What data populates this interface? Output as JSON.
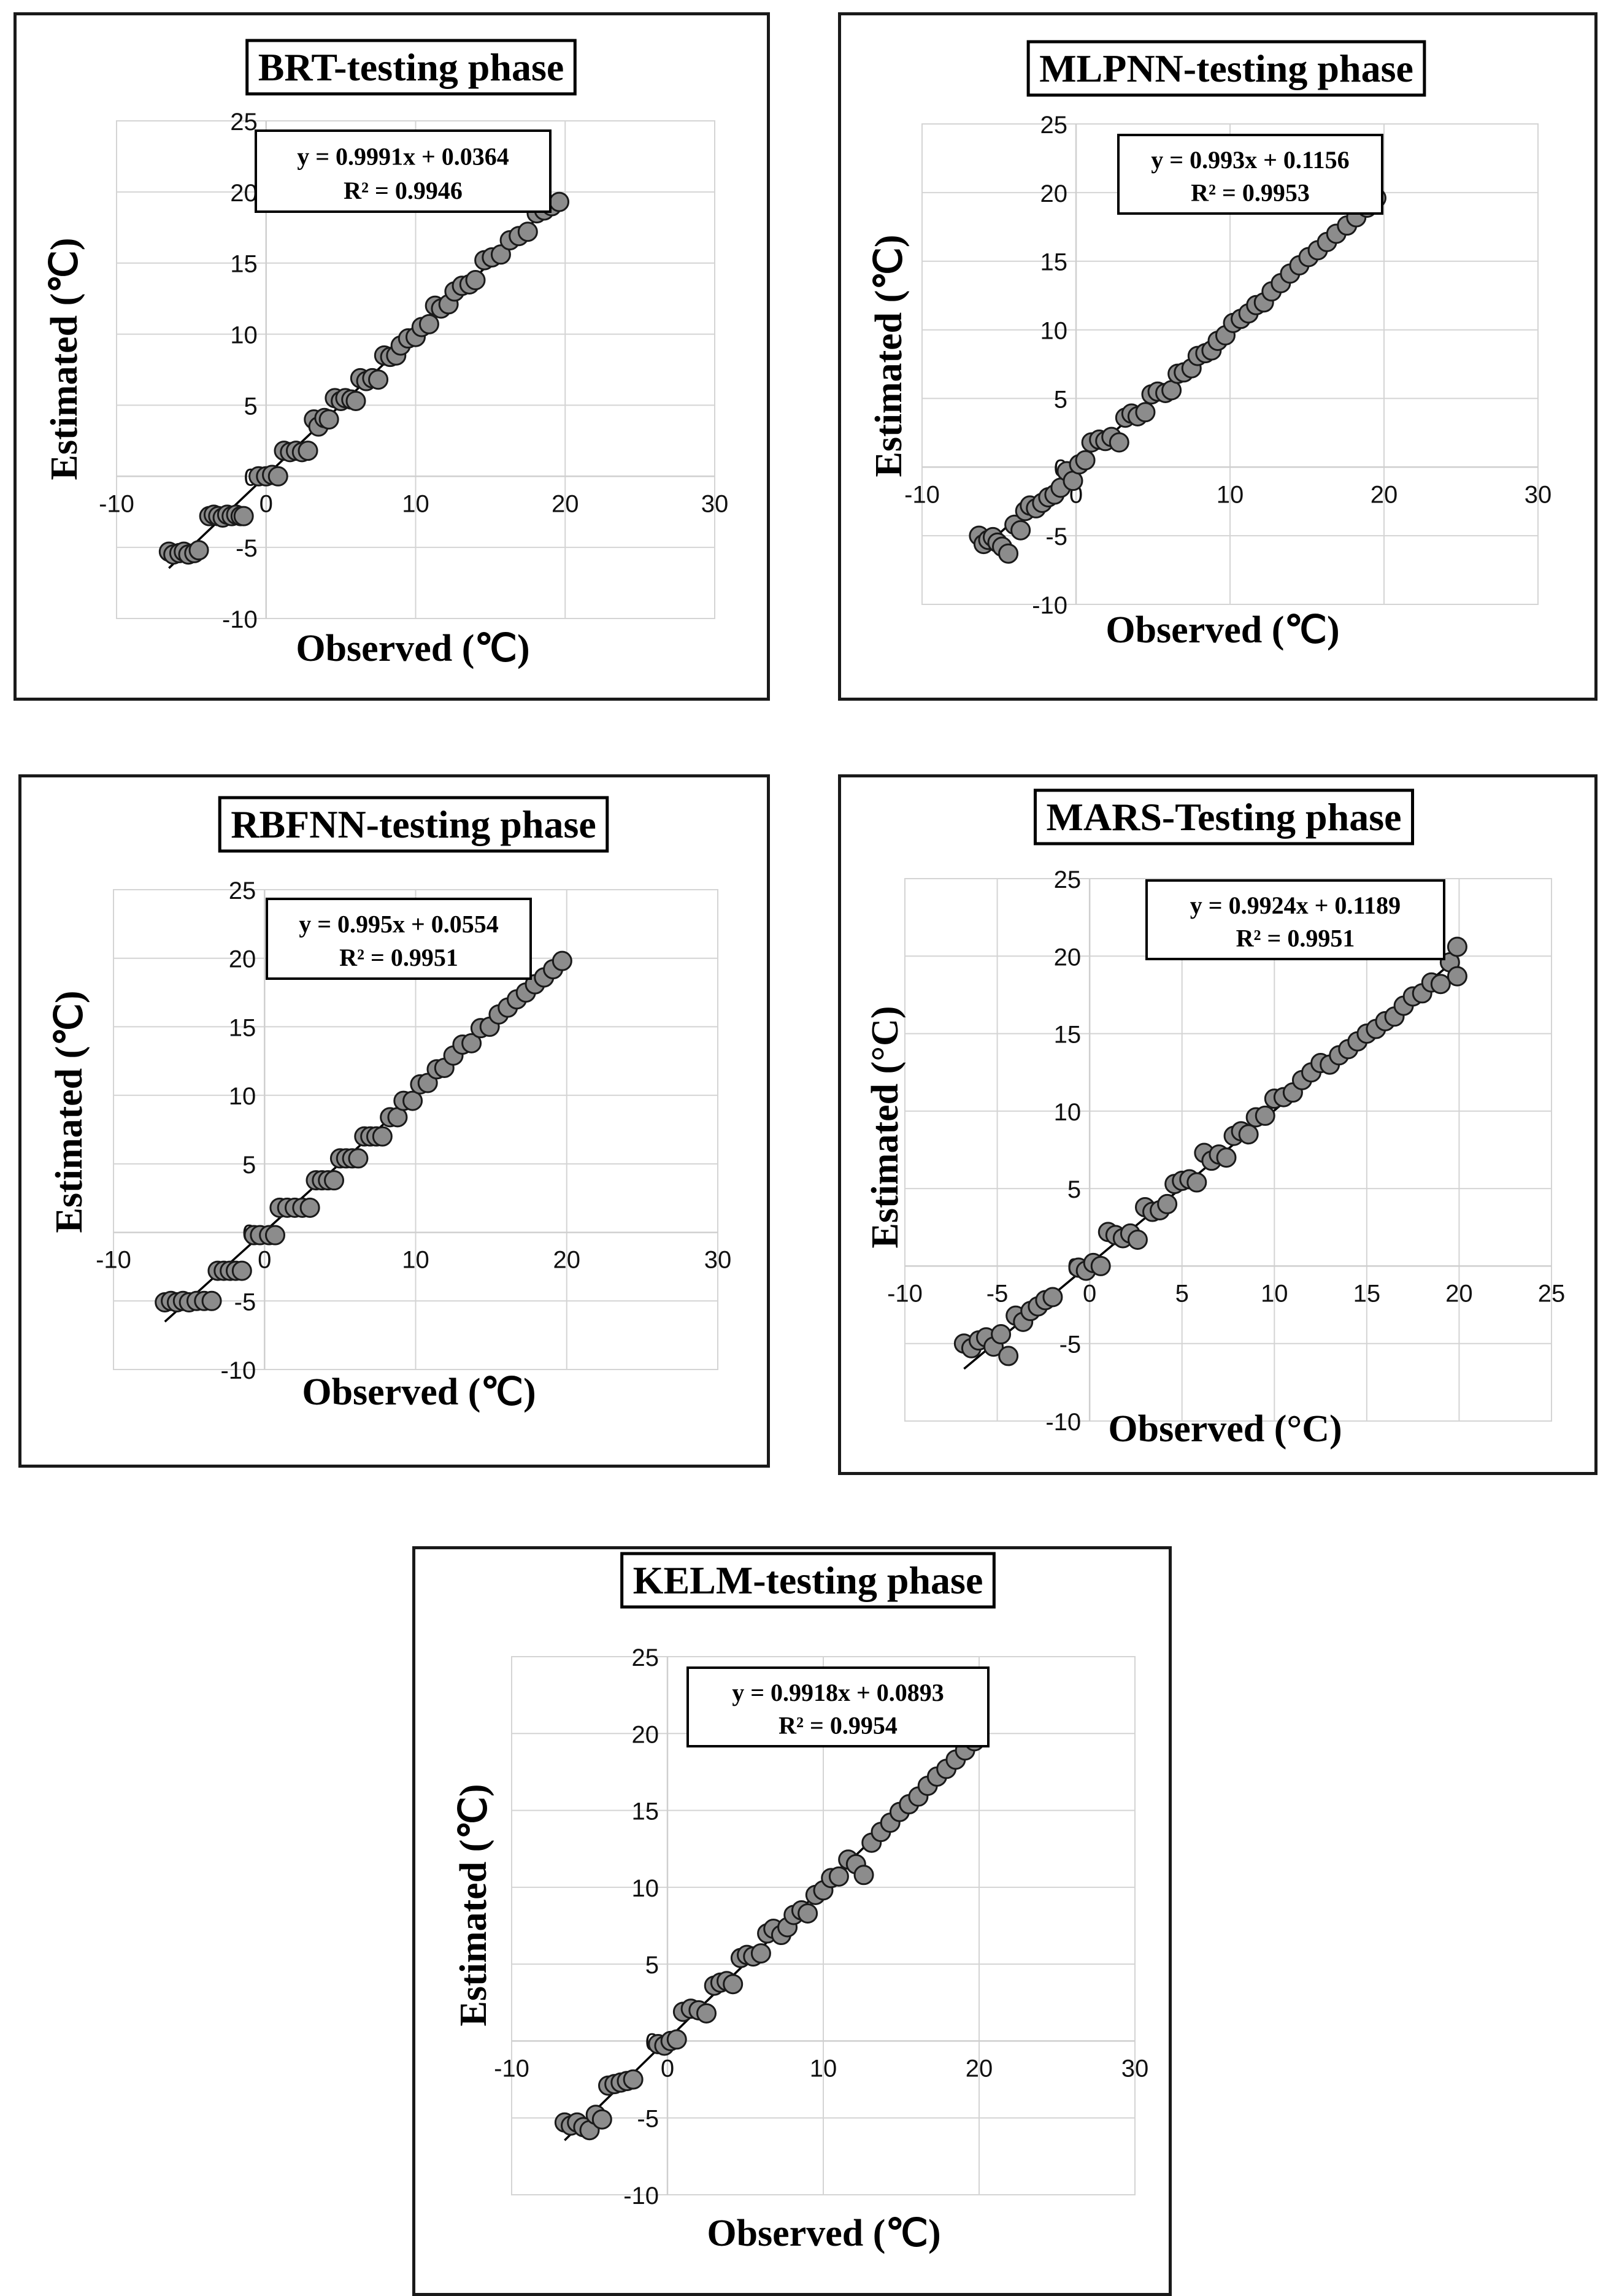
{
  "figure": {
    "x_axis_label": "Observed (℃)",
    "y_axis_label": "Estimated (℃)"
  },
  "chart_data": [
    {
      "type": "scatter",
      "title": "BRT-testing phase",
      "xlabel": "Observed (℃)",
      "ylabel": "Estimated (℃)",
      "xlim": [
        -10,
        30
      ],
      "ylim": [
        -10,
        25
      ],
      "xticks": [
        "-10",
        "0",
        "10",
        "20",
        "30"
      ],
      "yticks": [
        "-10",
        "-5",
        "0",
        "5",
        "10",
        "15",
        "20",
        "25"
      ],
      "equation": "y = 0.9991x + 0.0364",
      "r2_text": "R² = 0.9946",
      "slope": 0.9991,
      "intercept": 0.0364,
      "x": [
        -6.5,
        -6.2,
        -5.8,
        -5.5,
        -5.2,
        -4.8,
        -4.5,
        -3.8,
        -3.5,
        -3.2,
        -2.9,
        -2.6,
        -2.3,
        -2.0,
        -1.7,
        -1.5,
        -0.5,
        0.0,
        0.4,
        0.8,
        1.2,
        1.6,
        2.0,
        2.4,
        2.8,
        3.2,
        3.5,
        3.9,
        4.2,
        4.6,
        5.0,
        5.3,
        5.7,
        6.0,
        6.3,
        6.7,
        7.1,
        7.5,
        7.9,
        8.3,
        8.7,
        9.0,
        9.5,
        10.0,
        10.4,
        10.9,
        11.3,
        11.7,
        12.2,
        12.6,
        13.1,
        13.6,
        14.0,
        14.6,
        15.1,
        15.7,
        16.3,
        16.9,
        17.5,
        18.1,
        18.6,
        19.1,
        19.6
      ],
      "y": [
        -5.3,
        -5.5,
        -5.4,
        -5.3,
        -5.5,
        -5.4,
        -5.2,
        -2.8,
        -2.7,
        -2.8,
        -2.9,
        -2.7,
        -2.8,
        -2.7,
        -2.8,
        -2.8,
        0.0,
        0.0,
        0.1,
        0.0,
        1.8,
        1.7,
        1.8,
        1.7,
        1.8,
        4.0,
        3.5,
        4.1,
        4.0,
        5.5,
        5.3,
        5.5,
        5.4,
        5.3,
        6.9,
        6.7,
        6.9,
        6.8,
        8.5,
        8.4,
        8.5,
        9.2,
        9.7,
        9.8,
        10.5,
        10.7,
        12.0,
        11.8,
        12.1,
        13.0,
        13.4,
        13.5,
        13.8,
        15.2,
        15.4,
        15.6,
        16.6,
        16.9,
        17.2,
        18.5,
        18.7,
        19.0,
        19.3
      ]
    },
    {
      "type": "scatter",
      "title": "MLPNN-testing phase",
      "xlabel": "Observed (℃)",
      "ylabel": "Estimated (℃)",
      "xlim": [
        -10,
        30
      ],
      "ylim": [
        -10,
        25
      ],
      "xticks": [
        "-10",
        "0",
        "10",
        "20",
        "30"
      ],
      "yticks": [
        "-10",
        "-5",
        "0",
        "5",
        "10",
        "15",
        "20",
        "25"
      ],
      "equation": "y = 0.993x + 0.1156",
      "r2_text": "R² = 0.9953",
      "slope": 0.993,
      "intercept": 0.1156,
      "x": [
        -6.3,
        -6.0,
        -5.7,
        -5.4,
        -5.1,
        -4.8,
        -4.4,
        -4.0,
        -3.6,
        -3.3,
        -3.0,
        -2.6,
        -2.2,
        -1.8,
        -1.4,
        -1.0,
        -0.6,
        -0.2,
        0.2,
        0.6,
        1.0,
        1.5,
        1.9,
        2.3,
        2.8,
        3.2,
        3.6,
        4.0,
        4.5,
        4.9,
        5.3,
        5.8,
        6.2,
        6.6,
        7.0,
        7.5,
        7.9,
        8.4,
        8.8,
        9.2,
        9.7,
        10.2,
        10.7,
        11.2,
        11.7,
        12.2,
        12.7,
        13.3,
        13.9,
        14.5,
        15.1,
        15.7,
        16.3,
        16.9,
        17.6,
        18.2,
        18.9,
        19.5
      ],
      "y": [
        -5.0,
        -5.6,
        -5.3,
        -5.1,
        -5.5,
        -5.8,
        -6.3,
        -4.2,
        -4.6,
        -3.2,
        -2.8,
        -3.0,
        -2.6,
        -2.2,
        -2.0,
        -1.5,
        -0.3,
        -1.0,
        0.2,
        0.5,
        1.8,
        2.0,
        1.9,
        2.2,
        1.8,
        3.6,
        3.9,
        3.7,
        4.0,
        5.3,
        5.5,
        5.4,
        5.6,
        6.8,
        6.9,
        7.2,
        8.1,
        8.3,
        8.5,
        9.2,
        9.6,
        10.5,
        10.8,
        11.2,
        11.8,
        12.0,
        12.8,
        13.4,
        14.1,
        14.7,
        15.3,
        15.8,
        16.4,
        17.0,
        17.6,
        18.2,
        18.9,
        19.6
      ]
    },
    {
      "type": "scatter",
      "title": "RBFNN-testing phase",
      "xlabel": "Observed (℃)",
      "ylabel": "Estimated (℃)",
      "xlim": [
        -10,
        30
      ],
      "ylim": [
        -10,
        25
      ],
      "xticks": [
        "-10",
        "0",
        "10",
        "20",
        "30"
      ],
      "yticks": [
        "-10",
        "-5",
        "0",
        "5",
        "10",
        "15",
        "20",
        "25"
      ],
      "equation": "y = 0.995x + 0.0554",
      "r2_text": "R² = 0.9951",
      "slope": 0.995,
      "intercept": 0.0554,
      "x": [
        -6.6,
        -6.2,
        -5.8,
        -5.4,
        -5.0,
        -4.5,
        -4.0,
        -3.5,
        -3.1,
        -2.7,
        -2.3,
        -1.9,
        -1.5,
        -0.7,
        -0.3,
        0.3,
        0.7,
        1.0,
        1.5,
        2.0,
        2.5,
        3.0,
        3.4,
        3.8,
        4.2,
        4.6,
        5.0,
        5.4,
        5.8,
        6.2,
        6.6,
        7.0,
        7.4,
        7.8,
        8.3,
        8.8,
        9.2,
        9.8,
        10.3,
        10.8,
        11.4,
        11.9,
        12.5,
        13.1,
        13.7,
        14.3,
        14.9,
        15.5,
        16.1,
        16.7,
        17.3,
        17.9,
        18.5,
        19.1,
        19.7
      ],
      "y": [
        -5.1,
        -5.0,
        -5.1,
        -5.0,
        -5.1,
        -5.0,
        -5.0,
        -5.0,
        -2.8,
        -2.8,
        -2.8,
        -2.8,
        -2.8,
        -0.2,
        -0.2,
        -0.2,
        -0.2,
        1.8,
        1.8,
        1.8,
        1.8,
        1.8,
        3.8,
        3.8,
        3.8,
        3.8,
        5.4,
        5.4,
        5.4,
        5.4,
        7.0,
        7.0,
        7.0,
        7.0,
        8.4,
        8.4,
        9.6,
        9.6,
        10.8,
        10.9,
        11.9,
        12.0,
        12.9,
        13.7,
        13.8,
        14.9,
        15.0,
        15.9,
        16.4,
        17.0,
        17.5,
        18.1,
        18.6,
        19.2,
        19.8
      ]
    },
    {
      "type": "scatter",
      "title": "MARS-Testing phase",
      "xlabel": "Observed (°C)",
      "ylabel": "Estimated (°C)",
      "xlim": [
        -10,
        25
      ],
      "ylim": [
        -10,
        25
      ],
      "xticks": [
        "-10",
        "-5",
        "0",
        "5",
        "10",
        "15",
        "20",
        "25"
      ],
      "yticks": [
        "-10",
        "-5",
        "0",
        "5",
        "10",
        "15",
        "20",
        "25"
      ],
      "equation": "y = 0.9924x + 0.1189",
      "r2_text": "R² = 0.9951",
      "slope": 0.9924,
      "intercept": 0.1189,
      "x": [
        -6.8,
        -6.4,
        -6.0,
        -5.6,
        -5.2,
        -4.8,
        -4.4,
        -4.0,
        -3.6,
        -3.2,
        -2.8,
        -2.4,
        -2.0,
        -0.6,
        -0.2,
        0.2,
        0.6,
        1.0,
        1.4,
        1.8,
        2.2,
        2.6,
        3.0,
        3.4,
        3.8,
        4.2,
        4.6,
        5.0,
        5.4,
        5.8,
        6.2,
        6.6,
        7.0,
        7.4,
        7.8,
        8.2,
        8.6,
        9.0,
        9.5,
        10.0,
        10.5,
        11.0,
        11.5,
        12.0,
        12.5,
        13.0,
        13.5,
        14.0,
        14.5,
        15.0,
        15.5,
        16.0,
        16.5,
        17.0,
        17.5,
        18.0,
        18.5,
        19.0,
        19.5,
        19.9,
        19.9
      ],
      "y": [
        -5.0,
        -5.3,
        -4.8,
        -4.6,
        -5.2,
        -4.4,
        -5.8,
        -3.2,
        -3.6,
        -2.9,
        -2.6,
        -2.2,
        -2.0,
        -0.1,
        -0.3,
        0.2,
        0.0,
        2.2,
        2.0,
        1.8,
        2.1,
        1.7,
        3.8,
        3.5,
        3.6,
        4.0,
        5.3,
        5.5,
        5.6,
        5.4,
        7.3,
        6.8,
        7.2,
        7.0,
        8.4,
        8.7,
        8.5,
        9.6,
        9.7,
        10.8,
        10.9,
        11.2,
        12.0,
        12.5,
        13.1,
        13.0,
        13.6,
        14.0,
        14.5,
        15.0,
        15.3,
        15.8,
        16.1,
        16.8,
        17.4,
        17.6,
        18.3,
        18.2,
        19.6,
        20.6,
        18.7
      ]
    },
    {
      "type": "scatter",
      "title": "KELM-testing phase",
      "xlabel": "Observed (℃)",
      "ylabel": "Estimated (℃)",
      "xlim": [
        -10,
        30
      ],
      "ylim": [
        -10,
        25
      ],
      "xticks": [
        "-10",
        "0",
        "10",
        "20",
        "30"
      ],
      "yticks": [
        "-10",
        "-5",
        "0",
        "5",
        "10",
        "15",
        "20",
        "25"
      ],
      "equation": "y = 0.9918x + 0.0893",
      "r2_text": "R² = 0.9954",
      "slope": 0.9918,
      "intercept": 0.0893,
      "x": [
        -6.6,
        -6.2,
        -5.8,
        -5.4,
        -5.0,
        -4.6,
        -4.2,
        -3.8,
        -3.4,
        -3.0,
        -2.6,
        -2.2,
        -0.6,
        -0.2,
        0.2,
        0.6,
        1.0,
        1.5,
        2.0,
        2.5,
        3.0,
        3.4,
        3.8,
        4.2,
        4.7,
        5.1,
        5.5,
        6.0,
        6.4,
        6.8,
        7.3,
        7.7,
        8.1,
        8.6,
        9.0,
        9.5,
        10.0,
        10.5,
        11.0,
        11.6,
        12.1,
        12.6,
        13.1,
        13.7,
        14.3,
        14.9,
        15.5,
        16.1,
        16.7,
        17.3,
        17.9,
        18.5,
        19.1,
        19.7
      ],
      "y": [
        -5.3,
        -5.5,
        -5.3,
        -5.6,
        -5.8,
        -4.8,
        -5.1,
        -2.9,
        -2.8,
        -2.7,
        -2.6,
        -2.5,
        -0.2,
        -0.3,
        0.0,
        0.1,
        1.9,
        2.1,
        2.0,
        1.8,
        3.6,
        3.8,
        3.9,
        3.7,
        5.4,
        5.6,
        5.5,
        5.7,
        7.0,
        7.3,
        6.9,
        7.4,
        8.2,
        8.5,
        8.3,
        9.5,
        9.8,
        10.6,
        10.7,
        11.8,
        11.5,
        10.8,
        12.9,
        13.6,
        14.2,
        14.9,
        15.4,
        15.9,
        16.6,
        17.2,
        17.7,
        18.3,
        18.9,
        19.5
      ]
    }
  ]
}
